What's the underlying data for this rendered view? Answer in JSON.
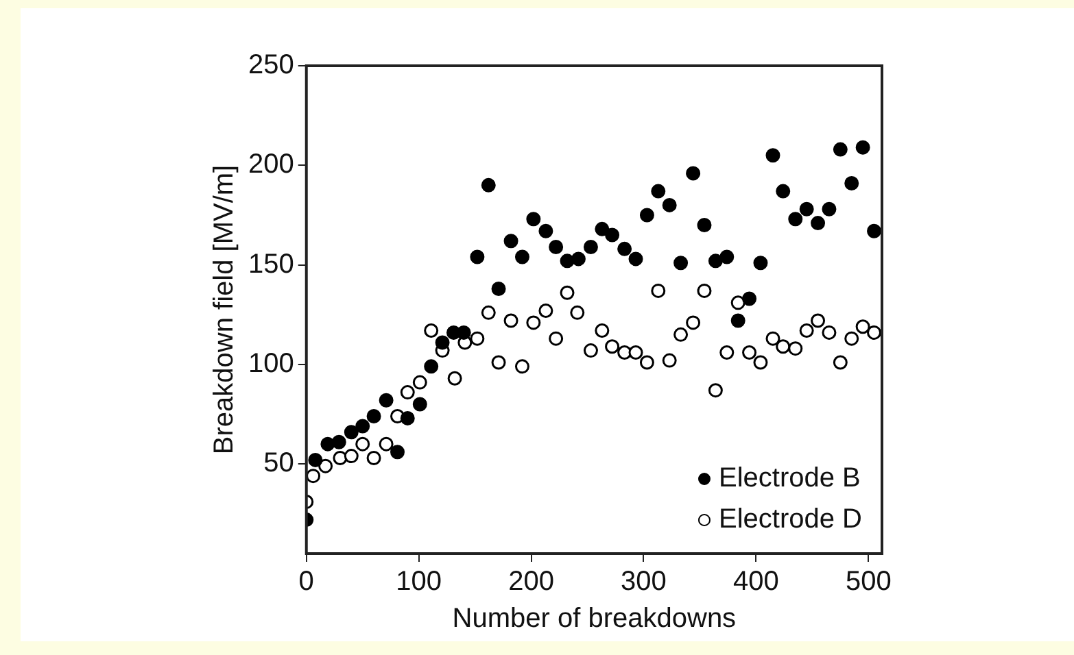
{
  "chart_data": {
    "type": "scatter",
    "xlabel": "Number of breakdowns",
    "ylabel": "Breakdown field [MV/m]",
    "xlim": [
      0,
      512
    ],
    "ylim": [
      5,
      250
    ],
    "xticks": [
      0,
      100,
      200,
      300,
      400,
      500
    ],
    "yticks": [
      50,
      100,
      150,
      200,
      250
    ],
    "grid": false,
    "legend": "bottom right",
    "marker": "circle",
    "series": [
      {
        "name": "Electrode B",
        "color": "#000000",
        "x": [
          0,
          8,
          19,
          29,
          40,
          50,
          60,
          71,
          81,
          90,
          101,
          111,
          121,
          131,
          140,
          152,
          162,
          171,
          182,
          192,
          202,
          213,
          222,
          232,
          242,
          253,
          263,
          272,
          283,
          293,
          303,
          313,
          323,
          333,
          344,
          354,
          364,
          374,
          384,
          394,
          404,
          415,
          424,
          435,
          445,
          455,
          465,
          475,
          485,
          495,
          505
        ],
        "values": [
          22,
          52,
          60,
          61,
          66,
          69,
          74,
          82,
          56,
          73,
          80,
          99,
          111,
          116,
          116,
          154,
          190,
          138,
          162,
          154,
          173,
          167,
          159,
          152,
          153,
          159,
          168,
          165,
          158,
          153,
          175,
          187,
          180,
          151,
          196,
          170,
          152,
          154,
          122,
          133,
          151,
          205,
          187,
          173,
          178,
          171,
          178,
          208,
          191,
          209,
          167
        ]
      },
      {
        "name": "Electrode D",
        "color": "#000000",
        "x": [
          0,
          6,
          17,
          30,
          40,
          50,
          60,
          71,
          81,
          90,
          101,
          111,
          121,
          132,
          141,
          152,
          162,
          171,
          182,
          192,
          202,
          213,
          222,
          232,
          241,
          253,
          263,
          272,
          283,
          293,
          303,
          313,
          323,
          333,
          344,
          354,
          364,
          374,
          384,
          394,
          404,
          415,
          424,
          435,
          445,
          455,
          465,
          475,
          485,
          495,
          505
        ],
        "values": [
          31,
          44,
          49,
          53,
          54,
          60,
          53,
          60,
          74,
          86,
          91,
          117,
          107,
          93,
          111,
          113,
          126,
          101,
          122,
          99,
          121,
          127,
          113,
          136,
          126,
          107,
          117,
          109,
          106,
          106,
          101,
          137,
          102,
          115,
          121,
          137,
          87,
          106,
          131,
          106,
          101,
          113,
          109,
          108,
          117,
          122,
          116,
          101,
          113,
          119,
          116
        ]
      }
    ]
  }
}
